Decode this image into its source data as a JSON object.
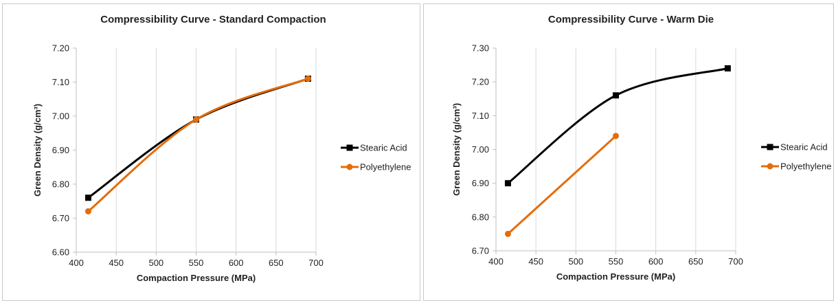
{
  "chart_data": [
    {
      "type": "line",
      "title": "Compressibility Curve - Standard Compaction",
      "xlabel": "Compaction Pressure (MPa)",
      "ylabel": "Green Density (g/cm³)",
      "xlim": [
        400,
        700
      ],
      "ylim": [
        6.6,
        7.2
      ],
      "x_ticks": [
        "400",
        "450",
        "500",
        "550",
        "600",
        "650",
        "700"
      ],
      "y_ticks": [
        "6.60",
        "6.70",
        "6.80",
        "6.90",
        "7.00",
        "7.10",
        "7.20"
      ],
      "grid": "vertical",
      "legend_position": "right",
      "series": [
        {
          "name": "Stearic Acid",
          "color": "#000000",
          "marker": "square",
          "x": [
            415,
            550,
            690
          ],
          "y": [
            6.76,
            6.99,
            7.11
          ]
        },
        {
          "name": "Polyethylene",
          "color": "#e46c0a",
          "marker": "circle",
          "x": [
            415,
            550,
            690
          ],
          "y": [
            6.72,
            6.99,
            7.11
          ]
        }
      ]
    },
    {
      "type": "line",
      "title": "Compressibility Curve - Warm Die",
      "xlabel": "Compaction Pressure (MPa)",
      "ylabel": "Green Density (g/cm³)",
      "xlim": [
        400,
        700
      ],
      "ylim": [
        6.7,
        7.3
      ],
      "x_ticks": [
        "400",
        "450",
        "500",
        "550",
        "600",
        "650",
        "700"
      ],
      "y_ticks": [
        "6.70",
        "6.80",
        "6.90",
        "7.00",
        "7.10",
        "7.20",
        "7.30"
      ],
      "grid": "vertical",
      "legend_position": "right",
      "series": [
        {
          "name": "Stearic Acid",
          "color": "#000000",
          "marker": "square",
          "x": [
            415,
            550,
            690
          ],
          "y": [
            6.9,
            7.16,
            7.24
          ]
        },
        {
          "name": "Polyethylene",
          "color": "#e46c0a",
          "marker": "circle",
          "x": [
            415,
            550
          ],
          "y": [
            6.75,
            7.04
          ]
        }
      ]
    }
  ]
}
